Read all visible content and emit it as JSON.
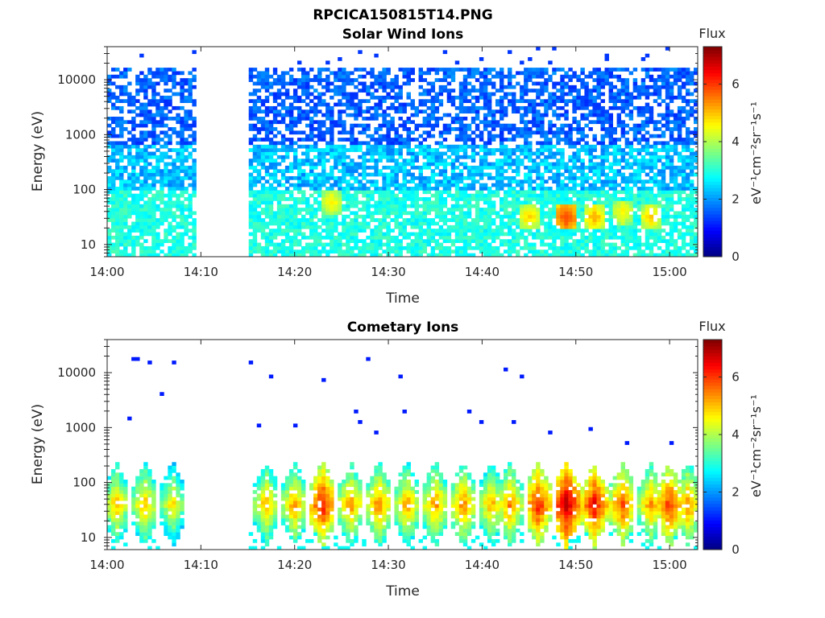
{
  "figure": {
    "title": "RPCICA150815T14.PNG"
  },
  "chart_data": [
    {
      "type": "heatmap",
      "title": "Solar Wind Ions",
      "xlabel": "Time",
      "ylabel": "Energy (eV)",
      "x_ticks": [
        "14:00",
        "14:10",
        "14:20",
        "14:30",
        "14:40",
        "14:50",
        "15:00"
      ],
      "xlim": [
        "14:00",
        "15:03"
      ],
      "y_scale": "log",
      "y_ticks": [
        "10",
        "100",
        "1000",
        "10000"
      ],
      "ylim": [
        6,
        40000
      ],
      "data_gap": [
        "14:09",
        "14:15"
      ],
      "colorbar": {
        "title": "Flux",
        "label": "eV⁻¹cm⁻²sr⁻¹s⁻¹",
        "ticks": [
          "0",
          "2",
          "4",
          "6"
        ],
        "range": [
          0,
          7.3
        ],
        "colormap": "jet"
      },
      "features": [
        {
          "time": "14:49",
          "energy_eV": 32,
          "level": 5.8
        },
        {
          "time": "14:52",
          "energy_eV": 32,
          "level": 5.0
        },
        {
          "time": "14:45",
          "energy_eV": 32,
          "level": 4.8
        },
        {
          "time": "14:24",
          "energy_eV": 60,
          "level": 4.6
        },
        {
          "time": "14:55",
          "energy_eV": 40,
          "level": 4.6
        },
        {
          "time": "14:58",
          "energy_eV": 32,
          "level": 4.8
        }
      ]
    },
    {
      "type": "heatmap",
      "title": "Cometary Ions",
      "xlabel": "Time",
      "ylabel": "Energy (eV)",
      "x_ticks": [
        "14:00",
        "14:10",
        "14:20",
        "14:30",
        "14:40",
        "14:50",
        "15:00"
      ],
      "xlim": [
        "14:00",
        "15:03"
      ],
      "y_scale": "log",
      "y_ticks": [
        "10",
        "100",
        "1000",
        "10000"
      ],
      "ylim": [
        6,
        40000
      ],
      "data_gap": [
        "14:09",
        "14:15"
      ],
      "colorbar": {
        "title": "Flux",
        "label": "eV⁻¹cm⁻²sr⁻¹s⁻¹",
        "ticks": [
          "0",
          "2",
          "4",
          "6"
        ],
        "range": [
          0,
          7.3
        ],
        "colormap": "jet"
      },
      "pulses": [
        {
          "time": "14:01",
          "peak": 5.2
        },
        {
          "time": "14:04",
          "peak": 5.3
        },
        {
          "time": "14:07",
          "peak": 4.9
        },
        {
          "time": "14:17",
          "peak": 5.3
        },
        {
          "time": "14:20",
          "peak": 5.4
        },
        {
          "time": "14:23",
          "peak": 6.4
        },
        {
          "time": "14:26",
          "peak": 5.5
        },
        {
          "time": "14:29",
          "peak": 5.6
        },
        {
          "time": "14:32",
          "peak": 5.4
        },
        {
          "time": "14:35",
          "peak": 5.5
        },
        {
          "time": "14:38",
          "peak": 5.6
        },
        {
          "time": "14:41",
          "peak": 5.3
        },
        {
          "time": "14:43",
          "peak": 5.6
        },
        {
          "time": "14:46",
          "peak": 6.3
        },
        {
          "time": "14:49",
          "peak": 7.0
        },
        {
          "time": "14:52",
          "peak": 6.5
        },
        {
          "time": "14:55",
          "peak": 6.0
        },
        {
          "time": "14:58",
          "peak": 5.5
        },
        {
          "time": "15:00",
          "peak": 6.2
        },
        {
          "time": "15:02",
          "peak": 5.6
        }
      ]
    }
  ]
}
